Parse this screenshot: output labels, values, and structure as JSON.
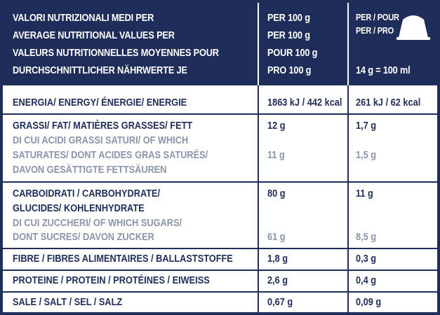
{
  "header": {
    "labels": [
      "VALORI NUTRIZIONALI MEDI PER",
      "AVERAGE NUTRITIONAL VALUES PER",
      "VALEURS NUTRITIONNELLES MOYENNES POUR",
      "DURCHSCHNITTLICHER NÄHRWERTE JE"
    ],
    "per100": [
      "PER 100 g",
      "PER 100 g",
      "POUR 100 g",
      "PRO 100 g"
    ],
    "portion": [
      "PER / POUR",
      "PER / PRO",
      "14 g = 100 ml"
    ],
    "capsule_icon": "coffee-capsule-icon"
  },
  "rows": {
    "energy": {
      "label": "ENERGIA/ ENERGY/ ÉNERGIE/ ENERGIE",
      "v100": "1863 kJ / 442 kcal",
      "vport": "261 kJ / 62 kcal"
    },
    "fat": {
      "label": "GRASSI/ FAT/ MATIÈRES GRASSES/ FETT",
      "v100": "12 g",
      "vport": "1,7 g",
      "sub_lines": [
        "DI CUI ACIDI GRASSI SATURI/ OF WHICH",
        "SATURATES/ DONT ACIDES GRAS SATURÉS/",
        "DAVON GESÄTTIGTE FETTSÄUREN"
      ],
      "sub_v100": "11 g",
      "sub_vport": "1,5 g"
    },
    "carbs": {
      "label_lines": [
        "CARBOIDRATI / CARBOHYDRATE/",
        "GLUCIDES/ KOHLENHYDRATE"
      ],
      "v100": "80 g",
      "vport": "11 g",
      "sub_lines": [
        "DI CUI ZUCCHERI/ OF WHICH SUGARS/",
        "DONT SUCRES/ DAVON ZUCKER"
      ],
      "sub_v100": "61 g",
      "sub_vport": "8,5 g"
    },
    "fibre": {
      "label": "FIBRE / FIBRES ALIMENTAIRES / BALLASTSTOFFE",
      "v100": "1,8 g",
      "vport": "0,3 g"
    },
    "protein": {
      "label": "PROTEINE / PROTEIN / PROTÉINES / EIWEISS",
      "v100": "2,6 g",
      "vport": "0,4 g"
    },
    "salt": {
      "label": "SALE / SALT / SEL / SALZ",
      "v100": "0,67 g",
      "vport": "0,09 g"
    }
  },
  "colors": {
    "navy": "#1f2d5a",
    "grey_text": "#8a94ad",
    "white": "#ffffff"
  }
}
